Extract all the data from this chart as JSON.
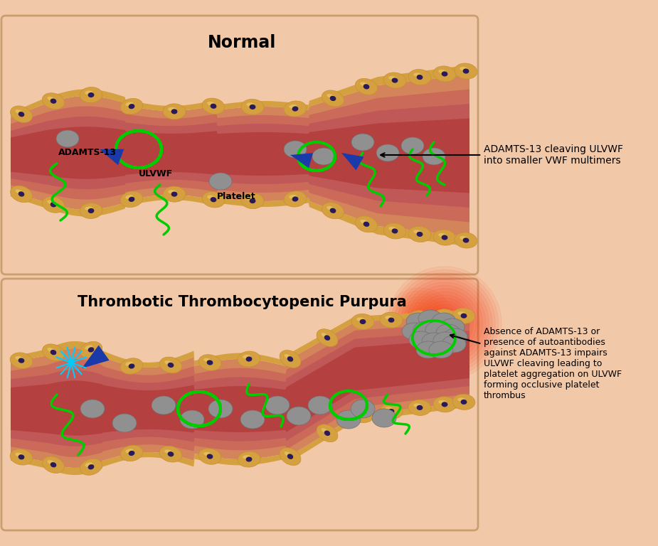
{
  "bg_color": "#f2c9a8",
  "title_normal": "Normal",
  "title_ttp": "Thrombotic Thrombocytopenic Purpura",
  "annotation_normal": "ADAMTS-13 cleaving ULVWF\ninto smaller VWF multimers",
  "annotation_ttp": "Absence of ADAMTS-13 or\npresence of autoantibodies\nagainst ADAMTS-13 impairs\nULVWF cleaving leading to\nplatelet aggregation on ULVWF\nforming occlusive platelet\nthrombus",
  "label_adamts": "ADAMTS-13",
  "label_ulvwf": "ULVWF",
  "label_platelet": "Platelet",
  "vessel_colors": [
    "#d4845a",
    "#c87060",
    "#c06060",
    "#b84848",
    "#aa3838"
  ],
  "endo_color": "#d4a040",
  "endo_outer_color": "#e8b850",
  "nucleus_color": "#2a1a5a",
  "platelet_color": "#909090",
  "vwf_color": "#00cc00",
  "adamts_color": "#1a3aaa",
  "cyan_color": "#00ccff"
}
